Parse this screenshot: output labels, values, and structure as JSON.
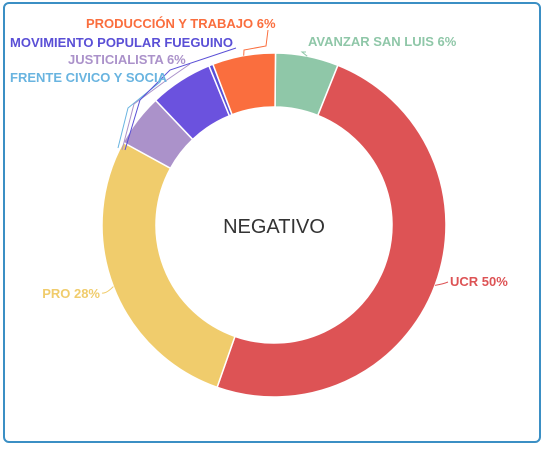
{
  "chart_data": {
    "type": "pie",
    "center_label": "NEGATIVO",
    "series": [
      {
        "name": "AVANZAR SAN LUIS",
        "value": 6,
        "label": "AVANZAR SAN LUIS 6%",
        "color": "#8fc7a8"
      },
      {
        "name": "UCR",
        "value": 50,
        "label": "UCR 50%",
        "color": "#dd5355"
      },
      {
        "name": "PRO",
        "value": 28,
        "label": "PRO 28%",
        "color": "#f0cc6c"
      },
      {
        "name": "FRENTE CIVICO Y SOCIAL",
        "value": 5,
        "label": "FRENTE CIVICO Y SOCIA",
        "color": "#ab92ca"
      },
      {
        "name": "JUSTICIALISTA",
        "value": 6,
        "label": "JUSTICIALISTA 6%",
        "color": "#6b52de"
      },
      {
        "name": "MOVIMIENTO POPULAR FUEGUINO",
        "value": 0.4,
        "label": "MOVIMIENTO POPULAR FUEGUINO",
        "color": "#5a4fd6"
      },
      {
        "name": "PRODUCCIÓN Y TRABAJO",
        "value": 6,
        "label": "PRODUCCIÓN Y TRABAJO 6%",
        "color": "#fa6e3e"
      }
    ],
    "label_colors": {
      "AVANZAR SAN LUIS": "#8fc7a8",
      "UCR": "#dd5355",
      "PRO": "#f0cc6c",
      "FRENTE CIVICO Y SOCIAL": "#69b4e0",
      "JUSTICIALISTA": "#ab92ca",
      "MOVIMIENTO POPULAR FUEGUINO": "#5a4fd6",
      "PRODUCCIÓN Y TRABAJO": "#fa6e3e"
    }
  }
}
